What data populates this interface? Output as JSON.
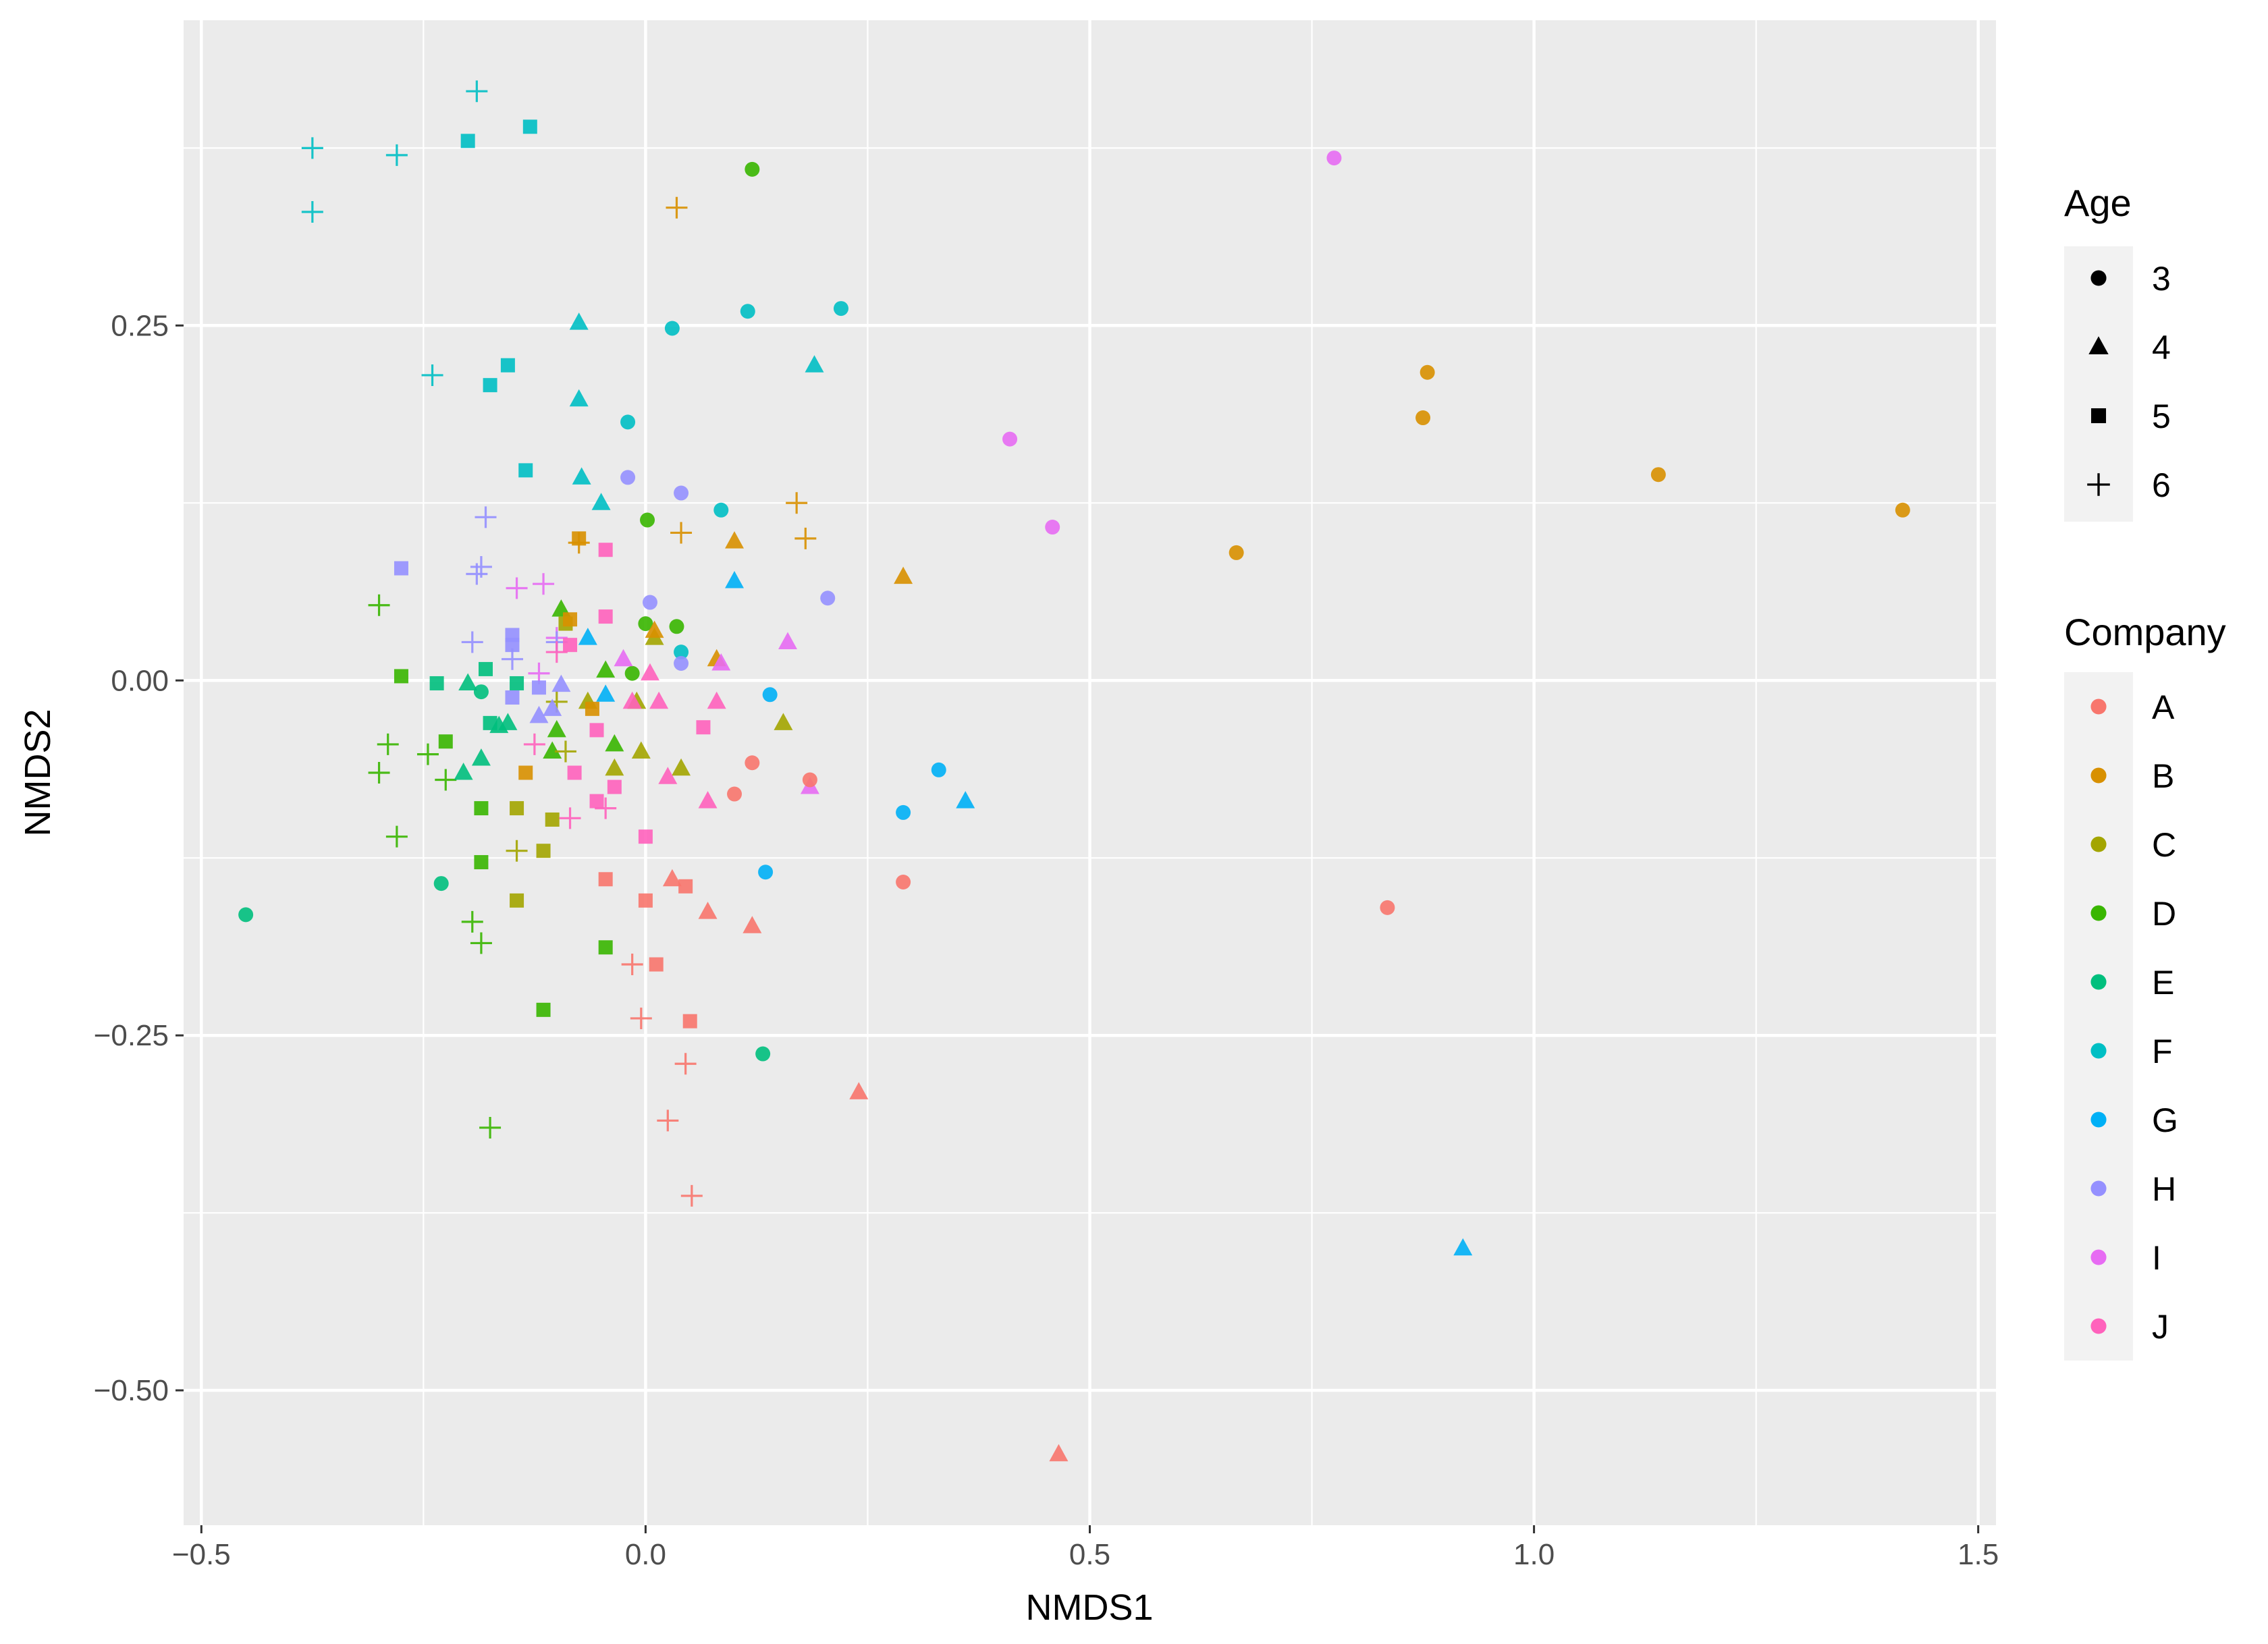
{
  "chart_data": {
    "type": "scatter",
    "xlabel": "NMDS1",
    "ylabel": "NMDS2",
    "xlim": [
      -0.52,
      1.52
    ],
    "ylim": [
      -0.595,
      0.465
    ],
    "x_ticks": [
      -0.5,
      0.0,
      0.5,
      1.0,
      1.5
    ],
    "x_tick_labels": [
      "−0.5",
      "0.0",
      "0.5",
      "1.0",
      "1.5"
    ],
    "y_ticks": [
      -0.5,
      -0.25,
      0.0,
      0.25
    ],
    "y_tick_labels": [
      "−0.50",
      "−0.25",
      "0.00",
      "0.25"
    ],
    "grid": true,
    "legend_position": "right",
    "legends": {
      "shape": {
        "title": "Age",
        "items": [
          {
            "label": "3",
            "shape": "circle"
          },
          {
            "label": "4",
            "shape": "triangle"
          },
          {
            "label": "5",
            "shape": "square"
          },
          {
            "label": "6",
            "shape": "plus"
          }
        ]
      },
      "color": {
        "title": "Company",
        "items": [
          {
            "label": "A",
            "color": "#F8766D"
          },
          {
            "label": "B",
            "color": "#D89000"
          },
          {
            "label": "C",
            "color": "#A3A500"
          },
          {
            "label": "D",
            "color": "#39B600"
          },
          {
            "label": "E",
            "color": "#00BF7D"
          },
          {
            "label": "F",
            "color": "#00BFC4"
          },
          {
            "label": "G",
            "color": "#00B0F6"
          },
          {
            "label": "H",
            "color": "#9590FF"
          },
          {
            "label": "I",
            "color": "#E76BF3"
          },
          {
            "label": "J",
            "color": "#FF62BC"
          }
        ]
      }
    },
    "points": [
      {
        "company": "F",
        "age": "6",
        "x": -0.19,
        "y": 0.415
      },
      {
        "company": "F",
        "age": "6",
        "x": -0.375,
        "y": 0.375
      },
      {
        "company": "F",
        "age": "6",
        "x": -0.28,
        "y": 0.37
      },
      {
        "company": "F",
        "age": "6",
        "x": -0.375,
        "y": 0.33
      },
      {
        "company": "F",
        "age": "6",
        "x": -0.24,
        "y": 0.215
      },
      {
        "company": "F",
        "age": "5",
        "x": -0.2,
        "y": 0.38
      },
      {
        "company": "F",
        "age": "5",
        "x": -0.13,
        "y": 0.39
      },
      {
        "company": "F",
        "age": "5",
        "x": -0.155,
        "y": 0.222
      },
      {
        "company": "F",
        "age": "5",
        "x": -0.175,
        "y": 0.208
      },
      {
        "company": "F",
        "age": "5",
        "x": -0.135,
        "y": 0.148
      },
      {
        "company": "F",
        "age": "4",
        "x": -0.075,
        "y": 0.252
      },
      {
        "company": "F",
        "age": "4",
        "x": -0.075,
        "y": 0.198
      },
      {
        "company": "F",
        "age": "4",
        "x": -0.072,
        "y": 0.143
      },
      {
        "company": "F",
        "age": "4",
        "x": -0.05,
        "y": 0.125
      },
      {
        "company": "F",
        "age": "4",
        "x": 0.19,
        "y": 0.222
      },
      {
        "company": "F",
        "age": "3",
        "x": 0.03,
        "y": 0.248
      },
      {
        "company": "F",
        "age": "3",
        "x": 0.115,
        "y": 0.26
      },
      {
        "company": "F",
        "age": "3",
        "x": 0.22,
        "y": 0.262
      },
      {
        "company": "F",
        "age": "3",
        "x": -0.02,
        "y": 0.182
      },
      {
        "company": "F",
        "age": "3",
        "x": 0.085,
        "y": 0.12
      },
      {
        "company": "F",
        "age": "3",
        "x": 0.04,
        "y": 0.02
      },
      {
        "company": "D",
        "age": "3",
        "x": 0.12,
        "y": 0.36
      },
      {
        "company": "D",
        "age": "3",
        "x": 0.002,
        "y": 0.113
      },
      {
        "company": "D",
        "age": "3",
        "x": 0.0,
        "y": 0.04
      },
      {
        "company": "D",
        "age": "3",
        "x": 0.035,
        "y": 0.038
      },
      {
        "company": "D",
        "age": "3",
        "x": -0.015,
        "y": 0.005
      },
      {
        "company": "D",
        "age": "4",
        "x": -0.095,
        "y": 0.05
      },
      {
        "company": "D",
        "age": "4",
        "x": -0.045,
        "y": 0.007
      },
      {
        "company": "D",
        "age": "4",
        "x": -0.035,
        "y": -0.045
      },
      {
        "company": "D",
        "age": "4",
        "x": -0.1,
        "y": -0.035
      },
      {
        "company": "D",
        "age": "4",
        "x": -0.105,
        "y": -0.05
      },
      {
        "company": "D",
        "age": "5",
        "x": -0.275,
        "y": 0.003
      },
      {
        "company": "D",
        "age": "5",
        "x": -0.225,
        "y": -0.043
      },
      {
        "company": "D",
        "age": "5",
        "x": -0.185,
        "y": -0.09
      },
      {
        "company": "D",
        "age": "5",
        "x": -0.185,
        "y": -0.128
      },
      {
        "company": "D",
        "age": "5",
        "x": -0.045,
        "y": -0.188
      },
      {
        "company": "D",
        "age": "5",
        "x": -0.115,
        "y": -0.232
      },
      {
        "company": "D",
        "age": "6",
        "x": -0.3,
        "y": 0.053
      },
      {
        "company": "D",
        "age": "6",
        "x": -0.29,
        "y": -0.045
      },
      {
        "company": "D",
        "age": "6",
        "x": -0.3,
        "y": -0.065
      },
      {
        "company": "D",
        "age": "6",
        "x": -0.28,
        "y": -0.11
      },
      {
        "company": "D",
        "age": "6",
        "x": -0.245,
        "y": -0.052
      },
      {
        "company": "D",
        "age": "6",
        "x": -0.225,
        "y": -0.07
      },
      {
        "company": "D",
        "age": "6",
        "x": -0.195,
        "y": -0.17
      },
      {
        "company": "D",
        "age": "6",
        "x": -0.185,
        "y": -0.185
      },
      {
        "company": "D",
        "age": "6",
        "x": -0.175,
        "y": -0.315
      },
      {
        "company": "E",
        "age": "3",
        "x": -0.45,
        "y": -0.165
      },
      {
        "company": "E",
        "age": "3",
        "x": -0.23,
        "y": -0.143
      },
      {
        "company": "E",
        "age": "3",
        "x": 0.132,
        "y": -0.263
      },
      {
        "company": "E",
        "age": "3",
        "x": -0.185,
        "y": -0.008
      },
      {
        "company": "E",
        "age": "5",
        "x": -0.235,
        "y": -0.002
      },
      {
        "company": "E",
        "age": "5",
        "x": -0.18,
        "y": 0.008
      },
      {
        "company": "E",
        "age": "5",
        "x": -0.175,
        "y": -0.03
      },
      {
        "company": "E",
        "age": "5",
        "x": -0.145,
        "y": -0.002
      },
      {
        "company": "E",
        "age": "4",
        "x": -0.2,
        "y": -0.002
      },
      {
        "company": "E",
        "age": "4",
        "x": -0.165,
        "y": -0.032
      },
      {
        "company": "E",
        "age": "4",
        "x": -0.155,
        "y": -0.03
      },
      {
        "company": "E",
        "age": "4",
        "x": -0.185,
        "y": -0.055
      },
      {
        "company": "E",
        "age": "4",
        "x": -0.205,
        "y": -0.065
      },
      {
        "company": "C",
        "age": "4",
        "x": -0.065,
        "y": -0.015
      },
      {
        "company": "C",
        "age": "4",
        "x": -0.01,
        "y": -0.015
      },
      {
        "company": "C",
        "age": "4",
        "x": -0.005,
        "y": -0.05
      },
      {
        "company": "C",
        "age": "4",
        "x": -0.035,
        "y": -0.062
      },
      {
        "company": "C",
        "age": "4",
        "x": 0.04,
        "y": -0.062
      },
      {
        "company": "C",
        "age": "4",
        "x": 0.155,
        "y": -0.03
      },
      {
        "company": "C",
        "age": "4",
        "x": 0.01,
        "y": 0.03
      },
      {
        "company": "C",
        "age": "5",
        "x": -0.09,
        "y": 0.04
      },
      {
        "company": "C",
        "age": "5",
        "x": -0.105,
        "y": -0.098
      },
      {
        "company": "C",
        "age": "5",
        "x": -0.115,
        "y": -0.12
      },
      {
        "company": "C",
        "age": "5",
        "x": -0.145,
        "y": -0.09
      },
      {
        "company": "C",
        "age": "5",
        "x": -0.145,
        "y": -0.155
      },
      {
        "company": "C",
        "age": "6",
        "x": -0.145,
        "y": -0.12
      },
      {
        "company": "C",
        "age": "6",
        "x": -0.09,
        "y": -0.05
      },
      {
        "company": "C",
        "age": "6",
        "x": -0.1,
        "y": -0.015
      },
      {
        "company": "B",
        "age": "3",
        "x": 0.88,
        "y": 0.217
      },
      {
        "company": "B",
        "age": "3",
        "x": 0.875,
        "y": 0.185
      },
      {
        "company": "B",
        "age": "3",
        "x": 1.14,
        "y": 0.145
      },
      {
        "company": "B",
        "age": "3",
        "x": 1.415,
        "y": 0.12
      },
      {
        "company": "B",
        "age": "3",
        "x": 0.665,
        "y": 0.09
      },
      {
        "company": "B",
        "age": "4",
        "x": 0.1,
        "y": 0.098
      },
      {
        "company": "B",
        "age": "4",
        "x": 0.29,
        "y": 0.073
      },
      {
        "company": "B",
        "age": "4",
        "x": 0.01,
        "y": 0.035
      },
      {
        "company": "B",
        "age": "4",
        "x": 0.08,
        "y": 0.015
      },
      {
        "company": "B",
        "age": "5",
        "x": -0.075,
        "y": 0.1
      },
      {
        "company": "B",
        "age": "5",
        "x": -0.085,
        "y": 0.043
      },
      {
        "company": "B",
        "age": "5",
        "x": -0.06,
        "y": -0.02
      },
      {
        "company": "B",
        "age": "5",
        "x": -0.135,
        "y": -0.065
      },
      {
        "company": "B",
        "age": "6",
        "x": 0.035,
        "y": 0.333
      },
      {
        "company": "B",
        "age": "6",
        "x": 0.17,
        "y": 0.125
      },
      {
        "company": "B",
        "age": "6",
        "x": 0.04,
        "y": 0.104
      },
      {
        "company": "B",
        "age": "6",
        "x": 0.18,
        "y": 0.1
      },
      {
        "company": "B",
        "age": "6",
        "x": -0.075,
        "y": 0.097
      },
      {
        "company": "I",
        "age": "3",
        "x": 0.775,
        "y": 0.368
      },
      {
        "company": "I",
        "age": "3",
        "x": 0.41,
        "y": 0.17
      },
      {
        "company": "I",
        "age": "3",
        "x": 0.458,
        "y": 0.108
      },
      {
        "company": "I",
        "age": "4",
        "x": 0.16,
        "y": 0.027
      },
      {
        "company": "I",
        "age": "4",
        "x": 0.085,
        "y": 0.012
      },
      {
        "company": "I",
        "age": "4",
        "x": 0.185,
        "y": -0.075
      },
      {
        "company": "I",
        "age": "4",
        "x": -0.025,
        "y": 0.015
      },
      {
        "company": "I",
        "age": "6",
        "x": -0.145,
        "y": 0.065
      },
      {
        "company": "I",
        "age": "6",
        "x": -0.115,
        "y": 0.068
      },
      {
        "company": "I",
        "age": "6",
        "x": -0.1,
        "y": 0.03
      },
      {
        "company": "I",
        "age": "6",
        "x": -0.12,
        "y": 0.005
      },
      {
        "company": "H",
        "age": "3",
        "x": -0.02,
        "y": 0.143
      },
      {
        "company": "H",
        "age": "3",
        "x": 0.04,
        "y": 0.132
      },
      {
        "company": "H",
        "age": "3",
        "x": 0.205,
        "y": 0.058
      },
      {
        "company": "H",
        "age": "3",
        "x": 0.005,
        "y": 0.055
      },
      {
        "company": "H",
        "age": "3",
        "x": 0.04,
        "y": 0.012
      },
      {
        "company": "H",
        "age": "5",
        "x": -0.275,
        "y": 0.079
      },
      {
        "company": "H",
        "age": "5",
        "x": -0.15,
        "y": 0.032
      },
      {
        "company": "H",
        "age": "5",
        "x": -0.15,
        "y": 0.025
      },
      {
        "company": "H",
        "age": "5",
        "x": -0.12,
        "y": -0.005
      },
      {
        "company": "H",
        "age": "5",
        "x": -0.15,
        "y": -0.012
      },
      {
        "company": "H",
        "age": "4",
        "x": -0.095,
        "y": -0.003
      },
      {
        "company": "H",
        "age": "4",
        "x": -0.12,
        "y": -0.025
      },
      {
        "company": "H",
        "age": "4",
        "x": -0.105,
        "y": -0.02
      },
      {
        "company": "H",
        "age": "6",
        "x": -0.18,
        "y": 0.115
      },
      {
        "company": "H",
        "age": "6",
        "x": -0.185,
        "y": 0.08
      },
      {
        "company": "H",
        "age": "6",
        "x": -0.19,
        "y": 0.075
      },
      {
        "company": "H",
        "age": "6",
        "x": -0.195,
        "y": 0.027
      },
      {
        "company": "H",
        "age": "6",
        "x": -0.15,
        "y": 0.015
      },
      {
        "company": "H",
        "age": "6",
        "x": -0.1,
        "y": 0.027
      },
      {
        "company": "G",
        "age": "3",
        "x": 0.14,
        "y": -0.01
      },
      {
        "company": "G",
        "age": "3",
        "x": 0.135,
        "y": -0.135
      },
      {
        "company": "G",
        "age": "3",
        "x": 0.29,
        "y": -0.093
      },
      {
        "company": "G",
        "age": "3",
        "x": 0.33,
        "y": -0.063
      },
      {
        "company": "G",
        "age": "4",
        "x": 0.36,
        "y": -0.085
      },
      {
        "company": "G",
        "age": "4",
        "x": 0.1,
        "y": 0.07
      },
      {
        "company": "G",
        "age": "4",
        "x": 0.92,
        "y": -0.4
      },
      {
        "company": "G",
        "age": "4",
        "x": -0.065,
        "y": 0.03
      },
      {
        "company": "G",
        "age": "4",
        "x": -0.045,
        "y": -0.01
      },
      {
        "company": "J",
        "age": "5",
        "x": -0.045,
        "y": 0.045
      },
      {
        "company": "J",
        "age": "5",
        "x": -0.045,
        "y": 0.092
      },
      {
        "company": "J",
        "age": "5",
        "x": -0.085,
        "y": 0.025
      },
      {
        "company": "J",
        "age": "5",
        "x": -0.055,
        "y": -0.035
      },
      {
        "company": "J",
        "age": "5",
        "x": -0.055,
        "y": -0.085
      },
      {
        "company": "J",
        "age": "5",
        "x": -0.035,
        "y": -0.075
      },
      {
        "company": "J",
        "age": "5",
        "x": -0.08,
        "y": -0.065
      },
      {
        "company": "J",
        "age": "5",
        "x": 0.065,
        "y": -0.033
      },
      {
        "company": "J",
        "age": "5",
        "x": 0.0,
        "y": -0.11
      },
      {
        "company": "J",
        "age": "4",
        "x": 0.005,
        "y": 0.005
      },
      {
        "company": "J",
        "age": "4",
        "x": 0.015,
        "y": -0.015
      },
      {
        "company": "J",
        "age": "4",
        "x": 0.025,
        "y": -0.068
      },
      {
        "company": "J",
        "age": "4",
        "x": 0.07,
        "y": -0.085
      },
      {
        "company": "J",
        "age": "4",
        "x": -0.015,
        "y": -0.015
      },
      {
        "company": "J",
        "age": "4",
        "x": 0.08,
        "y": -0.015
      },
      {
        "company": "J",
        "age": "6",
        "x": -0.085,
        "y": -0.097
      },
      {
        "company": "J",
        "age": "6",
        "x": -0.045,
        "y": -0.09
      },
      {
        "company": "J",
        "age": "6",
        "x": -0.125,
        "y": -0.045
      },
      {
        "company": "J",
        "age": "6",
        "x": -0.1,
        "y": 0.02
      },
      {
        "company": "A",
        "age": "3",
        "x": 0.12,
        "y": -0.058
      },
      {
        "company": "A",
        "age": "3",
        "x": 0.1,
        "y": -0.08
      },
      {
        "company": "A",
        "age": "3",
        "x": 0.185,
        "y": -0.07
      },
      {
        "company": "A",
        "age": "3",
        "x": 0.29,
        "y": -0.142
      },
      {
        "company": "A",
        "age": "3",
        "x": 0.835,
        "y": -0.16
      },
      {
        "company": "A",
        "age": "4",
        "x": 0.03,
        "y": -0.14
      },
      {
        "company": "A",
        "age": "4",
        "x": 0.07,
        "y": -0.163
      },
      {
        "company": "A",
        "age": "4",
        "x": 0.12,
        "y": -0.173
      },
      {
        "company": "A",
        "age": "4",
        "x": 0.24,
        "y": -0.29
      },
      {
        "company": "A",
        "age": "4",
        "x": 0.465,
        "y": -0.545
      },
      {
        "company": "A",
        "age": "5",
        "x": -0.045,
        "y": -0.14
      },
      {
        "company": "A",
        "age": "5",
        "x": 0.0,
        "y": -0.155
      },
      {
        "company": "A",
        "age": "5",
        "x": 0.045,
        "y": -0.145
      },
      {
        "company": "A",
        "age": "5",
        "x": 0.012,
        "y": -0.2
      },
      {
        "company": "A",
        "age": "5",
        "x": 0.05,
        "y": -0.24
      },
      {
        "company": "A",
        "age": "6",
        "x": -0.015,
        "y": -0.2
      },
      {
        "company": "A",
        "age": "6",
        "x": -0.005,
        "y": -0.238
      },
      {
        "company": "A",
        "age": "6",
        "x": 0.045,
        "y": -0.27
      },
      {
        "company": "A",
        "age": "6",
        "x": 0.025,
        "y": -0.31
      },
      {
        "company": "A",
        "age": "6",
        "x": 0.052,
        "y": -0.363
      }
    ]
  }
}
